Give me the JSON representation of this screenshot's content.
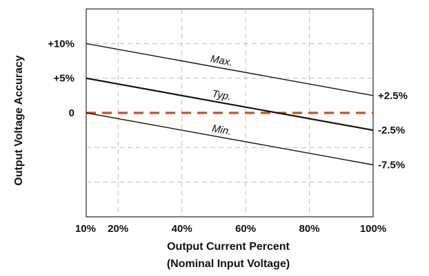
{
  "chart_data": {
    "type": "line",
    "xlabel": "Output Current Percent",
    "xlabel_sub": "(Nominal Input Voltage)",
    "ylabel": "Output Voltage Accuracy",
    "xlim": [
      10,
      100
    ],
    "ylim": [
      -15,
      15
    ],
    "x_ticks": [
      {
        "value": 10,
        "label": "10%"
      },
      {
        "value": 20,
        "label": "20%"
      },
      {
        "value": 40,
        "label": "40%"
      },
      {
        "value": 60,
        "label": "60%"
      },
      {
        "value": 80,
        "label": "80%"
      },
      {
        "value": 100,
        "label": "100%"
      }
    ],
    "y_ticks": [
      {
        "value": 10,
        "label": "+10%"
      },
      {
        "value": 5,
        "label": "+5%"
      },
      {
        "value": 0,
        "label": "0"
      }
    ],
    "grid": true,
    "reference_line": {
      "y": 0,
      "color": "#d9491e",
      "style": "dashed"
    },
    "series": [
      {
        "name": "Max.",
        "x": [
          10,
          100
        ],
        "y": [
          10,
          2.5
        ],
        "end_label": "+2.5%"
      },
      {
        "name": "Typ.",
        "x": [
          10,
          100
        ],
        "y": [
          5,
          -2.5
        ],
        "end_label": "-2.5%"
      },
      {
        "name": "Min.",
        "x": [
          10,
          100
        ],
        "y": [
          0,
          -7.5
        ],
        "end_label": "-7.5%"
      }
    ]
  }
}
